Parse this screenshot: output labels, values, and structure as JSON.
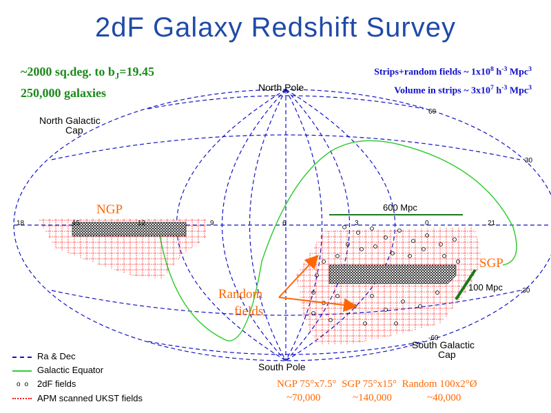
{
  "title": "2dF Galaxy Redshift Survey",
  "notes": {
    "area": "~2000 sq.deg. to b",
    "area_sub": "J",
    "area_mag": "=19.45",
    "galaxies": "250,000 galaxies",
    "strips_prefix": "Strips+random fields ~ 1x10",
    "strips_exp": "8",
    "strips_h": " h",
    "strips_hexp": "-3",
    "strips_unit": " Mpc",
    "strips_uexp": "3",
    "volume_prefix": "Volume in strips ~ 3x10",
    "volume_exp": "7",
    "volume_h": " h",
    "volume_hexp": "-3",
    "volume_unit": " Mpc",
    "volume_uexp": "3"
  },
  "map": {
    "north_pole": "North Pole",
    "south_pole": "South Pole",
    "north_cap": [
      "North Galactic",
      "Cap"
    ],
    "south_cap": [
      "South Galactic",
      "Cap"
    ],
    "ra_labels": [
      "18",
      "15",
      "12",
      "9",
      "6",
      "3",
      "0",
      "21"
    ],
    "dec_labels": [
      "60",
      "30",
      "-30",
      "-60"
    ],
    "ngp": "NGP",
    "sgp": "SGP",
    "random_fields": [
      "Random",
      "fields"
    ],
    "scale_600": "600 Mpc",
    "scale_100": "100 Mpc"
  },
  "legend": {
    "items": [
      {
        "label": "Ra & Dec",
        "color": "#1010c8"
      },
      {
        "label": "Galactic Equator",
        "color": "#33cc33"
      },
      {
        "label": "2dF fields",
        "color": "#000000"
      },
      {
        "label": "APM scanned UKST fields",
        "color": "#ff0000"
      }
    ]
  },
  "stats": {
    "ngp": "NGP 75°x7.5°",
    "sgp": "SGP 75°x15°",
    "random": "Random 100x2°Ø",
    "ngp_n": "~70,000",
    "sgp_n": "~140,000",
    "random_n": "~40,000"
  },
  "colors": {
    "grid": "#1010c8",
    "equator": "#33cc33",
    "ukst": "#ff0000",
    "arrow": "#ff6600",
    "scale_bar": "#1a7a1a"
  }
}
